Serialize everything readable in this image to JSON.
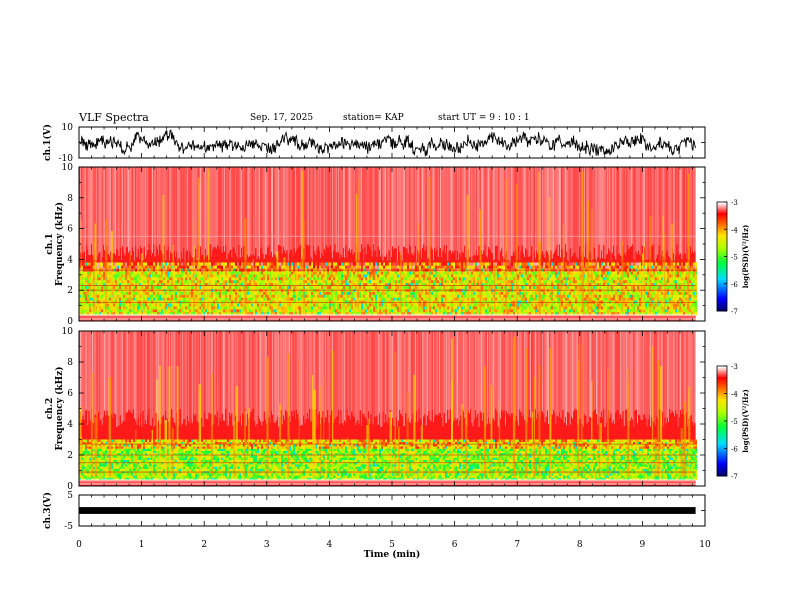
{
  "header": {
    "title": "VLF Spectra",
    "date": "Sep. 17, 2025",
    "station": "station= KAP",
    "start": "start  UT  =   9  : 10 : 1"
  },
  "chart_data": [
    {
      "id": "ch1-waveform",
      "type": "line",
      "ylabel": "ch.1(V)",
      "ylim": [
        -10,
        10
      ],
      "yticks": [
        "10",
        "-10"
      ],
      "xlim": [
        0,
        10
      ],
      "x_end": 9.85
    },
    {
      "id": "ch1-spectrogram",
      "type": "heatmap",
      "ylabel_top": "ch.1",
      "ylabel": "Frequency (kHz)",
      "ylim": [
        0,
        10
      ],
      "yticks": [
        "0",
        "2",
        "4",
        "6",
        "8",
        "10"
      ],
      "xlim": [
        0,
        10
      ],
      "x_end": 9.85,
      "colorbar": {
        "label": "log(PSD)(V²/Hz)",
        "range": [
          -7,
          -3
        ],
        "ticks": [
          "-3",
          "-4",
          "-5",
          "-6",
          "-7"
        ]
      }
    },
    {
      "id": "ch2-spectrogram",
      "type": "heatmap",
      "ylabel_top": "ch.2",
      "ylabel": "Frequency (kHz)",
      "ylim": [
        0,
        10
      ],
      "yticks": [
        "0",
        "2",
        "4",
        "6",
        "8",
        "10"
      ],
      "xlim": [
        0,
        10
      ],
      "x_end": 9.85,
      "colorbar": {
        "label": "log(PSD)(V²/Hz)",
        "range": [
          -7,
          -3
        ],
        "ticks": [
          "-3",
          "-4",
          "-5",
          "-6",
          "-7"
        ]
      }
    },
    {
      "id": "ch3-waveform",
      "type": "line",
      "ylabel": "ch.3(V)",
      "ylim": [
        -5,
        5
      ],
      "yticks": [
        "5",
        "-5"
      ],
      "xlim": [
        0,
        10
      ],
      "x_end": 9.85,
      "xlabel": "Time (min)",
      "xticks": [
        "0",
        "1",
        "2",
        "3",
        "4",
        "5",
        "6",
        "7",
        "8",
        "9",
        "10"
      ]
    }
  ]
}
